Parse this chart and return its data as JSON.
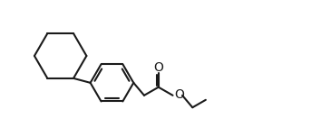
{
  "background": "#ffffff",
  "line_color": "#1a1a1a",
  "line_width": 1.5,
  "figsize": [
    3.54,
    1.52
  ],
  "dpi": 100,
  "xlim": [
    0.0,
    10.0
  ],
  "ylim": [
    0.0,
    4.3
  ]
}
